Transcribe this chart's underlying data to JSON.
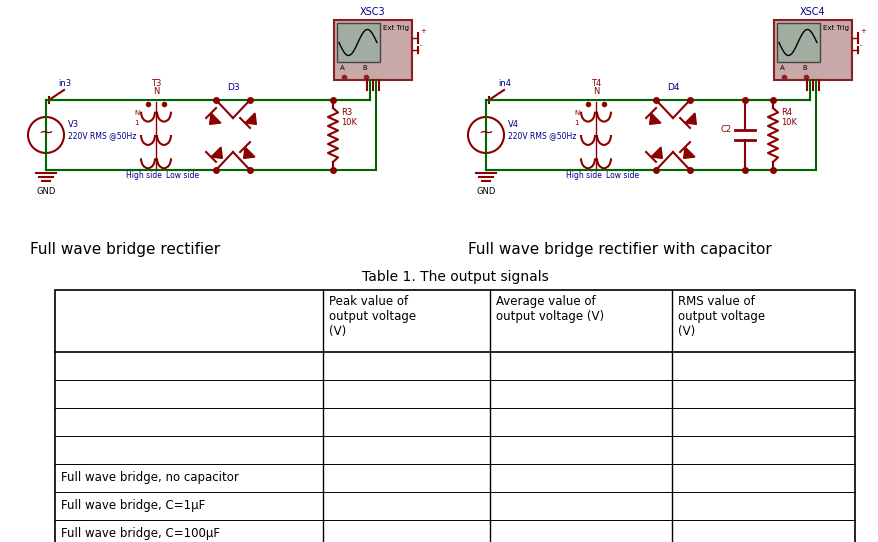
{
  "title": "Table 1. The output signals",
  "circuit1_label": "Full wave bridge rectifier",
  "circuit2_label": "Full wave bridge rectifier with capacitor",
  "xsc3_label": "XSC3",
  "xsc4_label": "XSC4",
  "ext_trig": "Ext Trig",
  "d3_label": "D3",
  "d4_label": "D4",
  "in3_label": "in3",
  "in4_label": "in4",
  "v3_label": "V3",
  "v3_sub": "220V RMS @50Hz",
  "v4_label": "V4",
  "v4_sub": "220V RMS @50Hz",
  "r3_label": "R3\n10K",
  "r4_label": "R4\n10K",
  "c2_label": "C2",
  "gnd_label": "GND",
  "high_side": "High side",
  "low_side": "Low side",
  "col_headers": [
    "Peak value of\noutput voltage\n(V)",
    "Average value of\noutput voltage (V)",
    "RMS value of\noutput voltage\n(V)"
  ],
  "row_labels": [
    "Full wave bridge, no capacitor",
    "Full wave bridge, C=1μF",
    "Full wave bridge, C=100μF"
  ],
  "circuit_color": "#8B0000",
  "wire_color": "#006400",
  "text_color_blue": "#00008B",
  "border_osc": "#8B2020",
  "osc_face": "#C8A8A8",
  "osc_screen": "#A0ADA0"
}
